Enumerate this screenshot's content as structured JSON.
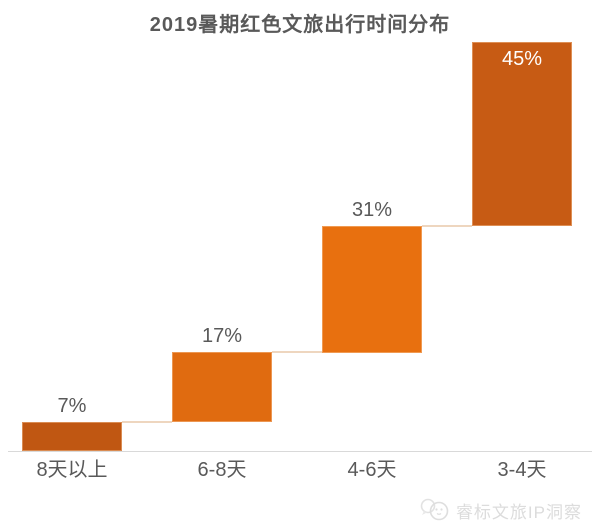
{
  "chart_data": {
    "type": "bar",
    "subtype": "waterfall",
    "title": "2019暑期红色文旅出行时间分布",
    "categories": [
      "8天以上",
      "6-8天",
      "4-6天",
      "3-4天"
    ],
    "values": [
      7,
      17,
      31,
      45
    ],
    "cumulative_start": [
      0,
      7,
      24,
      55
    ],
    "value_labels": [
      "7%",
      "17%",
      "31%",
      "45%"
    ],
    "unit": "%",
    "ylim": [
      0,
      100
    ],
    "grid": false,
    "legend": false,
    "xlabel": "",
    "ylabel": "",
    "bar_colors": [
      "#c05712",
      "#e06b10",
      "#e8700f",
      "#c75b14"
    ],
    "label_inside": [
      false,
      false,
      false,
      true
    ],
    "label_color": "#595959",
    "inside_label_color": "#ffffff",
    "connector_color": "#eed6bf",
    "axis_line_color": "#d9d9d9",
    "title_color": "#595959"
  },
  "watermark": {
    "icon": "chat-bubbles-logo-icon",
    "text": "睿标文旅IP洞察",
    "color": "#dcdcdc"
  }
}
